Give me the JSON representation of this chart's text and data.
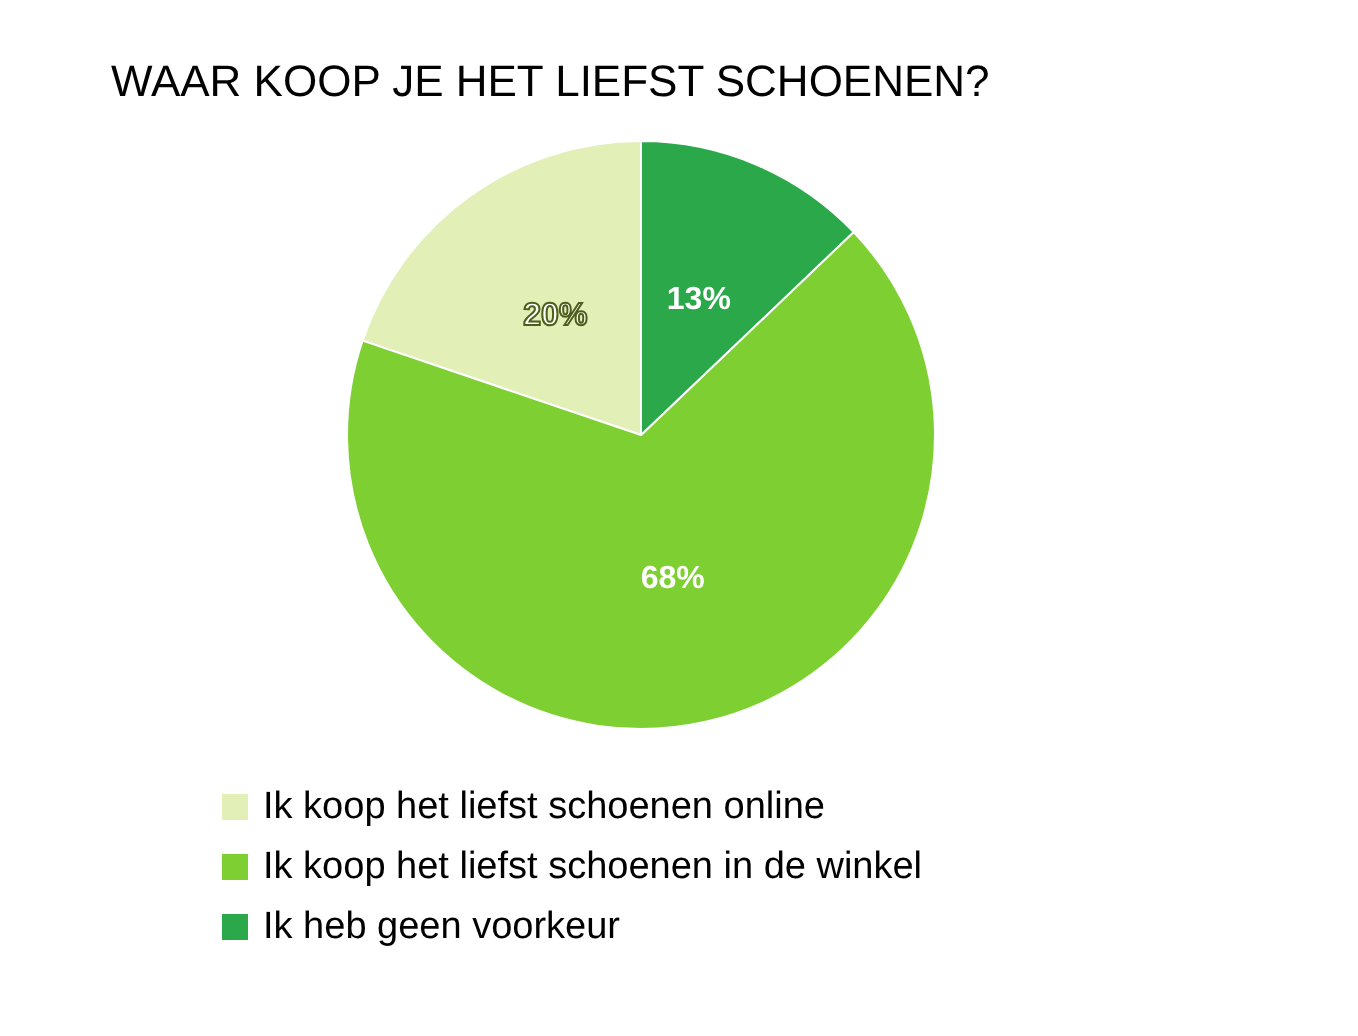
{
  "chart_data": {
    "type": "pie",
    "title": "WAAR KOOP JE HET LIEFST SCHOENEN?",
    "categories": [
      "Ik koop het liefst schoenen online",
      "Ik koop het liefst schoenen in de winkel",
      "Ik heb geen voorkeur"
    ],
    "values": [
      20,
      68,
      13
    ],
    "colors": [
      "#e2efb6",
      "#7ed032",
      "#2aa84a"
    ],
    "value_labels": [
      "20%",
      "68%",
      "13%"
    ],
    "legend": "bottom"
  }
}
